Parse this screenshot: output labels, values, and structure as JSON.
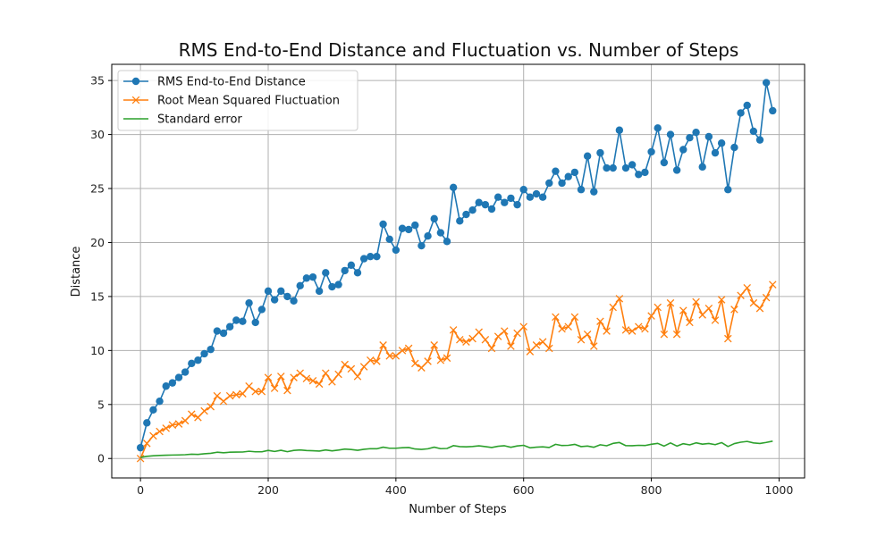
{
  "chart_data": {
    "type": "line",
    "title": "RMS End-to-End Distance and Fluctuation vs. Number of Steps",
    "xlabel": "Number of Steps",
    "ylabel": "Distance",
    "xlim": [
      -45,
      1040
    ],
    "ylim": [
      -1.8,
      36.5
    ],
    "xticks": [
      0,
      200,
      400,
      600,
      800,
      1000
    ],
    "yticks": [
      0,
      5,
      10,
      15,
      20,
      25,
      30,
      35
    ],
    "grid": true,
    "legend_position": "top-left",
    "x": [
      0,
      10,
      20,
      30,
      40,
      50,
      60,
      70,
      80,
      90,
      100,
      110,
      120,
      130,
      140,
      150,
      160,
      170,
      180,
      190,
      200,
      210,
      220,
      230,
      240,
      250,
      260,
      270,
      280,
      290,
      300,
      310,
      320,
      330,
      340,
      350,
      360,
      370,
      380,
      390,
      400,
      410,
      420,
      430,
      440,
      450,
      460,
      470,
      480,
      490,
      500,
      510,
      520,
      530,
      540,
      550,
      560,
      570,
      580,
      590,
      600,
      610,
      620,
      630,
      640,
      650,
      660,
      670,
      680,
      690,
      700,
      710,
      720,
      730,
      740,
      750,
      760,
      770,
      780,
      790,
      800,
      810,
      820,
      830,
      840,
      850,
      860,
      870,
      880,
      890,
      900,
      910,
      920,
      930,
      940,
      950,
      960,
      970,
      980,
      990
    ],
    "series": [
      {
        "name": "RMS End-to-End Distance",
        "color": "#1f77b4",
        "marker": "circle",
        "values": [
          1.0,
          3.3,
          4.5,
          5.3,
          6.7,
          7.0,
          7.5,
          8.0,
          8.8,
          9.1,
          9.7,
          10.1,
          11.8,
          11.6,
          12.2,
          12.8,
          12.7,
          14.4,
          12.6,
          13.8,
          15.5,
          14.7,
          15.5,
          15.0,
          14.6,
          16.0,
          16.7,
          16.8,
          15.5,
          17.2,
          15.9,
          16.1,
          17.4,
          17.9,
          17.2,
          18.5,
          18.7,
          18.7,
          21.7,
          20.3,
          19.3,
          21.3,
          21.2,
          21.6,
          19.7,
          20.6,
          22.2,
          20.9,
          20.1,
          25.1,
          22.0,
          22.6,
          23.0,
          23.7,
          23.5,
          23.1,
          24.2,
          23.7,
          24.1,
          23.5,
          24.9,
          24.2,
          24.5,
          24.2,
          25.5,
          26.6,
          25.5,
          26.1,
          26.5,
          24.9,
          28.0,
          24.7,
          28.3,
          26.9,
          26.9,
          30.4,
          26.9,
          27.2,
          26.3,
          26.5,
          28.4,
          30.6,
          27.4,
          30.0,
          26.7,
          28.6,
          29.7,
          30.2,
          27.0,
          29.8,
          28.3,
          29.2,
          24.9,
          28.8,
          32.0,
          32.7,
          30.3,
          29.5,
          34.8,
          32.2
        ]
      },
      {
        "name": "Root Mean Squared Fluctuation",
        "color": "#ff7f0e",
        "marker": "x",
        "values": [
          0.0,
          1.4,
          2.1,
          2.5,
          2.8,
          3.1,
          3.2,
          3.5,
          4.1,
          3.8,
          4.4,
          4.8,
          5.8,
          5.3,
          5.8,
          5.9,
          6.0,
          6.7,
          6.2,
          6.2,
          7.5,
          6.5,
          7.6,
          6.3,
          7.5,
          7.9,
          7.4,
          7.2,
          6.9,
          7.9,
          7.1,
          7.8,
          8.7,
          8.3,
          7.6,
          8.5,
          9.1,
          9.0,
          10.5,
          9.5,
          9.5,
          10.0,
          10.2,
          8.8,
          8.4,
          9.0,
          10.5,
          9.1,
          9.3,
          11.9,
          11.0,
          10.8,
          11.1,
          11.7,
          11.0,
          10.2,
          11.3,
          11.8,
          10.4,
          11.6,
          12.2,
          9.9,
          10.5,
          10.8,
          10.2,
          13.1,
          12.0,
          12.2,
          13.1,
          11.0,
          11.5,
          10.4,
          12.7,
          11.8,
          14.0,
          14.8,
          11.9,
          11.8,
          12.2,
          12.0,
          13.2,
          14.0,
          11.5,
          14.4,
          11.5,
          13.7,
          12.6,
          14.5,
          13.3,
          13.9,
          12.8,
          14.7,
          11.1,
          13.8,
          15.1,
          15.8,
          14.4,
          13.9,
          14.9,
          16.1
        ]
      },
      {
        "name": "Standard error",
        "color": "#2ca02c",
        "marker": "none",
        "values": [
          0.1,
          0.2,
          0.25,
          0.28,
          0.3,
          0.32,
          0.33,
          0.35,
          0.4,
          0.38,
          0.44,
          0.48,
          0.58,
          0.53,
          0.58,
          0.59,
          0.6,
          0.67,
          0.62,
          0.62,
          0.75,
          0.65,
          0.76,
          0.63,
          0.75,
          0.79,
          0.74,
          0.72,
          0.69,
          0.79,
          0.71,
          0.78,
          0.87,
          0.83,
          0.76,
          0.85,
          0.91,
          0.9,
          1.05,
          0.95,
          0.95,
          1.0,
          1.02,
          0.88,
          0.84,
          0.9,
          1.05,
          0.91,
          0.93,
          1.19,
          1.1,
          1.08,
          1.11,
          1.17,
          1.1,
          1.02,
          1.13,
          1.18,
          1.04,
          1.16,
          1.22,
          0.99,
          1.05,
          1.08,
          1.02,
          1.31,
          1.2,
          1.22,
          1.31,
          1.1,
          1.15,
          1.04,
          1.27,
          1.18,
          1.4,
          1.48,
          1.19,
          1.18,
          1.22,
          1.2,
          1.32,
          1.4,
          1.15,
          1.44,
          1.15,
          1.37,
          1.26,
          1.45,
          1.33,
          1.39,
          1.28,
          1.47,
          1.11,
          1.38,
          1.51,
          1.58,
          1.44,
          1.39,
          1.49,
          1.61
        ]
      }
    ]
  }
}
